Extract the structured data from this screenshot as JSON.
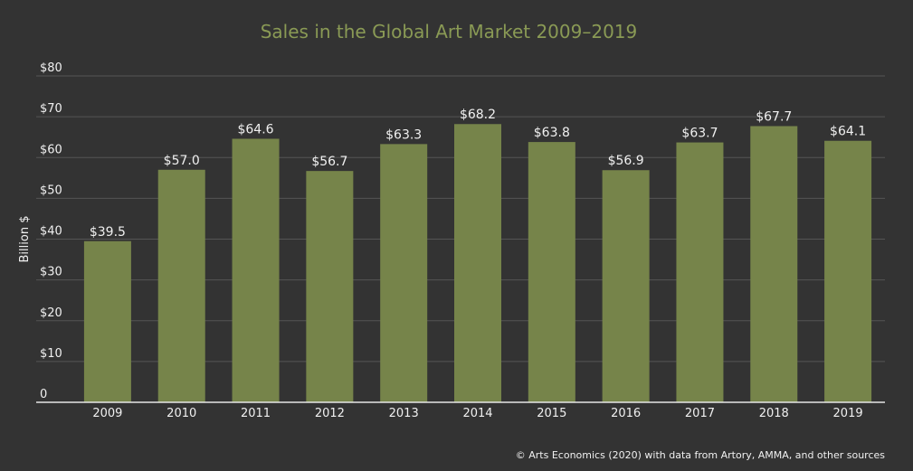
{
  "chart_data": {
    "type": "bar",
    "title": "Sales in the Global Art Market 2009–2019",
    "xlabel": "",
    "ylabel": "Billion $",
    "categories": [
      "2009",
      "2010",
      "2011",
      "2012",
      "2013",
      "2014",
      "2015",
      "2016",
      "2017",
      "2018",
      "2019"
    ],
    "values": [
      39.5,
      57.0,
      64.6,
      56.7,
      63.3,
      68.2,
      63.8,
      56.9,
      63.7,
      67.7,
      64.1
    ],
    "value_labels": [
      "$39.5",
      "$57.0",
      "$64.6",
      "$56.7",
      "$63.3",
      "$68.2",
      "$63.8",
      "$56.9",
      "$63.7",
      "$67.7",
      "$64.1"
    ],
    "ylim": [
      0,
      80
    ],
    "yticks": [
      0,
      10,
      20,
      30,
      40,
      50,
      60,
      70,
      80
    ],
    "ytick_labels": [
      "0",
      "$10",
      "$20",
      "$30",
      "$40",
      "$50",
      "$60",
      "$70",
      "$80"
    ],
    "grid": true,
    "legend": "none",
    "source": "© Arts Economics (2020) with data from Artory, AMMA, and other sources"
  },
  "colors": {
    "background": "#333333",
    "bar": "#76844a",
    "title": "#8a9a55",
    "text": "#f0f0f0",
    "grid": "#555555",
    "axis": "#e6e6e6"
  }
}
